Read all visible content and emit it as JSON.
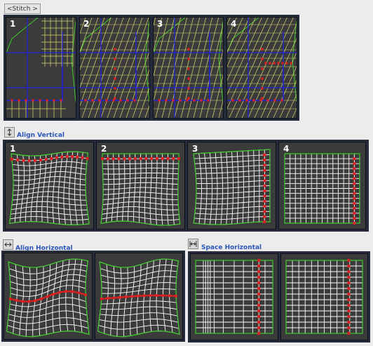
{
  "stitch": {
    "label": "<Stitch >"
  },
  "align_vertical": {
    "label": "Align Vertical",
    "icon": "arrows-vertical-icon"
  },
  "align_horizontal": {
    "label": "Align Horizontal",
    "icon": "arrows-horizontal-icon"
  },
  "space_horizontal": {
    "label": "Space Horizontal",
    "icon": "space-horizontal-icon"
  },
  "stitch_panels": [
    {
      "num": "1"
    },
    {
      "num": "2"
    },
    {
      "num": "3"
    },
    {
      "num": "4"
    }
  ],
  "align_vertical_panels": [
    {
      "num": "1"
    },
    {
      "num": "2"
    },
    {
      "num": "3"
    },
    {
      "num": "4"
    }
  ],
  "colors": {
    "panel_bg": "#3b3b3b",
    "frame": "#262b3c",
    "grid_white": "#ffffff",
    "edge_green": "#3ecc2a",
    "edge_blue": "#2222d8",
    "edge_yellow": "#d8d870",
    "selection_red": "#e02020",
    "label_blue": "#2a55b8"
  }
}
